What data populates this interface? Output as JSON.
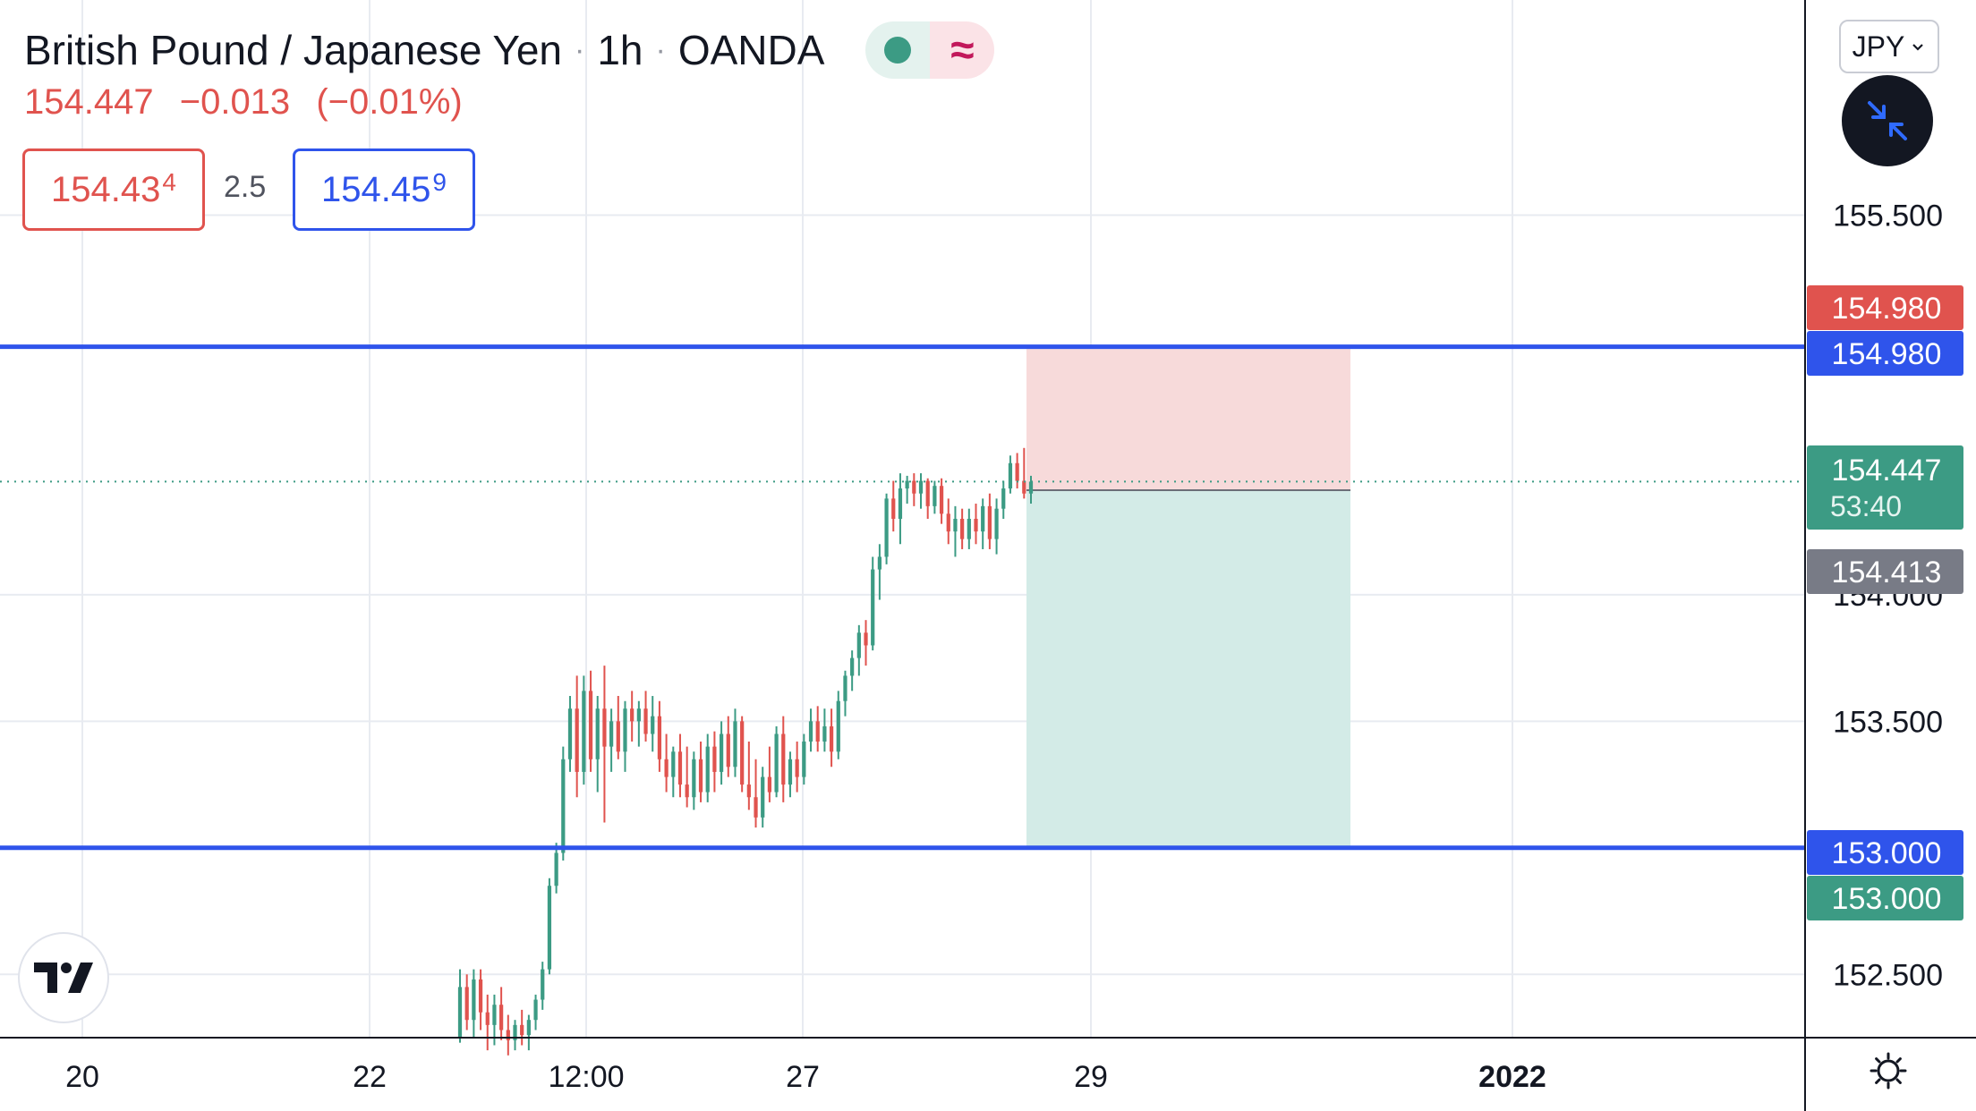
{
  "header": {
    "symbol": "British Pound / Japanese Yen",
    "interval": "1h",
    "exchange": "OANDA",
    "last_price": "154.447",
    "change": "−0.013",
    "change_percent": "(−0.01%)",
    "sell_price": "154.43",
    "sell_pip": "4",
    "spread": "2.5",
    "buy_price": "154.45",
    "buy_pip": "9",
    "status_icons": [
      "market-open-dot-icon",
      "delayed-data-wave-icon"
    ]
  },
  "toolbar": {
    "currency": "JPY",
    "collapse_icon": "collapse-arrows-icon",
    "logo_icon": "tradingview-logo-icon",
    "settings_icon": "gear-icon"
  },
  "colors": {
    "up": "#3c9b84",
    "down": "#e0534e",
    "line": "#2f54eb",
    "stop_zone": "#f7dada",
    "target_zone": "#d3ebe7"
  },
  "chart_data": {
    "type": "candlestick",
    "symbol": "GBPJPY",
    "interval": "1h",
    "x_ticks": [
      "20",
      "22",
      "12:00",
      "27",
      "29",
      "2022"
    ],
    "y_ticks": [
      "152.500",
      "153.000",
      "153.500",
      "154.000",
      "155.500"
    ],
    "y_range": [
      152.25,
      156.35
    ],
    "horizontal_lines": [
      154.98,
      153.0
    ],
    "price_labels": [
      {
        "value": "154.980",
        "color": "#e0534e"
      },
      {
        "value": "154.980",
        "color": "#2f54eb"
      },
      {
        "value": "154.447",
        "sub": "53:40",
        "color": "#3c9b84"
      },
      {
        "value": "154.413",
        "color": "#787b86"
      },
      {
        "value": "153.000",
        "color": "#2f54eb"
      },
      {
        "value": "153.000",
        "color": "#3c9b84"
      }
    ],
    "position": {
      "side": "short",
      "entry": 154.413,
      "stop": 154.98,
      "target": 153.0
    },
    "last_price": 154.447,
    "ohlc": [
      [
        152.25,
        152.52,
        152.23,
        152.45
      ],
      [
        152.45,
        152.5,
        152.28,
        152.32
      ],
      [
        152.32,
        152.52,
        152.25,
        152.48
      ],
      [
        152.48,
        152.52,
        152.28,
        152.35
      ],
      [
        152.35,
        152.42,
        152.2,
        152.3
      ],
      [
        152.3,
        152.42,
        152.22,
        152.38
      ],
      [
        152.38,
        152.45,
        152.24,
        152.28
      ],
      [
        152.28,
        152.34,
        152.18,
        152.24
      ],
      [
        152.24,
        152.32,
        152.2,
        152.3
      ],
      [
        152.3,
        152.36,
        152.22,
        152.26
      ],
      [
        152.26,
        152.34,
        152.2,
        152.32
      ],
      [
        152.32,
        152.42,
        152.28,
        152.4
      ],
      [
        152.4,
        152.55,
        152.36,
        152.52
      ],
      [
        152.52,
        152.88,
        152.5,
        152.85
      ],
      [
        152.85,
        153.02,
        152.82,
        152.98
      ],
      [
        152.98,
        153.4,
        152.95,
        153.35
      ],
      [
        153.35,
        153.6,
        153.3,
        153.55
      ],
      [
        153.55,
        153.68,
        153.2,
        153.3
      ],
      [
        153.3,
        153.68,
        153.25,
        153.62
      ],
      [
        153.62,
        153.7,
        153.3,
        153.35
      ],
      [
        153.35,
        153.6,
        153.22,
        153.55
      ],
      [
        153.55,
        153.72,
        153.1,
        153.4
      ],
      [
        153.4,
        153.55,
        153.3,
        153.5
      ],
      [
        153.5,
        153.6,
        153.35,
        153.38
      ],
      [
        153.38,
        153.58,
        153.3,
        153.55
      ],
      [
        153.55,
        153.62,
        153.42,
        153.5
      ],
      [
        153.5,
        153.58,
        153.4,
        153.55
      ],
      [
        153.55,
        153.62,
        153.42,
        153.45
      ],
      [
        153.45,
        153.6,
        153.38,
        153.52
      ],
      [
        153.52,
        153.58,
        153.3,
        153.35
      ],
      [
        153.35,
        153.45,
        153.22,
        153.28
      ],
      [
        153.28,
        153.4,
        153.2,
        153.38
      ],
      [
        153.38,
        153.45,
        153.2,
        153.25
      ],
      [
        153.25,
        153.4,
        153.16,
        153.2
      ],
      [
        153.2,
        153.38,
        153.15,
        153.35
      ],
      [
        153.35,
        153.42,
        153.18,
        153.22
      ],
      [
        153.22,
        153.45,
        153.18,
        153.4
      ],
      [
        153.4,
        153.46,
        153.22,
        153.3
      ],
      [
        153.3,
        153.5,
        153.25,
        153.45
      ],
      [
        153.45,
        153.52,
        153.28,
        153.32
      ],
      [
        153.32,
        153.55,
        153.28,
        153.5
      ],
      [
        153.5,
        153.52,
        153.22,
        153.25
      ],
      [
        153.25,
        153.42,
        153.15,
        153.2
      ],
      [
        153.2,
        153.35,
        153.08,
        153.12
      ],
      [
        153.12,
        153.32,
        153.08,
        153.28
      ],
      [
        153.28,
        153.4,
        153.18,
        153.22
      ],
      [
        153.22,
        153.48,
        153.2,
        153.45
      ],
      [
        153.45,
        153.52,
        153.18,
        153.25
      ],
      [
        153.25,
        153.38,
        153.2,
        153.35
      ],
      [
        153.35,
        153.42,
        153.22,
        153.28
      ],
      [
        153.28,
        153.45,
        153.25,
        153.42
      ],
      [
        153.42,
        153.55,
        153.38,
        153.5
      ],
      [
        153.5,
        153.56,
        153.38,
        153.42
      ],
      [
        153.42,
        153.55,
        153.38,
        153.48
      ],
      [
        153.48,
        153.55,
        153.32,
        153.38
      ],
      [
        153.38,
        153.62,
        153.35,
        153.58
      ],
      [
        153.58,
        153.7,
        153.52,
        153.68
      ],
      [
        153.68,
        153.78,
        153.62,
        153.75
      ],
      [
        153.75,
        153.88,
        153.68,
        153.85
      ],
      [
        153.85,
        153.9,
        153.72,
        153.8
      ],
      [
        153.8,
        154.15,
        153.78,
        154.1
      ],
      [
        154.1,
        154.2,
        153.98,
        154.15
      ],
      [
        154.15,
        154.4,
        154.12,
        154.38
      ],
      [
        154.38,
        154.45,
        154.25,
        154.3
      ],
      [
        154.3,
        154.48,
        154.2,
        154.42
      ],
      [
        154.42,
        154.47,
        154.36,
        154.45
      ],
      [
        154.45,
        154.48,
        154.35,
        154.4
      ],
      [
        154.4,
        154.48,
        154.34,
        154.45
      ],
      [
        154.45,
        154.46,
        154.3,
        154.35
      ],
      [
        154.35,
        154.45,
        154.32,
        154.43
      ],
      [
        154.43,
        154.46,
        154.28,
        154.32
      ],
      [
        154.32,
        154.38,
        154.2,
        154.25
      ],
      [
        154.25,
        154.35,
        154.15,
        154.3
      ],
      [
        154.3,
        154.34,
        154.18,
        154.22
      ],
      [
        154.22,
        154.34,
        154.18,
        154.3
      ],
      [
        154.3,
        154.36,
        154.2,
        154.25
      ],
      [
        154.25,
        154.38,
        154.18,
        154.35
      ],
      [
        154.35,
        154.4,
        154.18,
        154.22
      ],
      [
        154.22,
        154.38,
        154.16,
        154.34
      ],
      [
        154.34,
        154.45,
        154.3,
        154.42
      ],
      [
        154.42,
        154.55,
        154.4,
        154.52
      ],
      [
        154.52,
        154.56,
        154.42,
        154.45
      ],
      [
        154.45,
        154.58,
        154.38,
        154.4
      ],
      [
        154.4,
        154.47,
        154.36,
        154.447
      ]
    ]
  }
}
